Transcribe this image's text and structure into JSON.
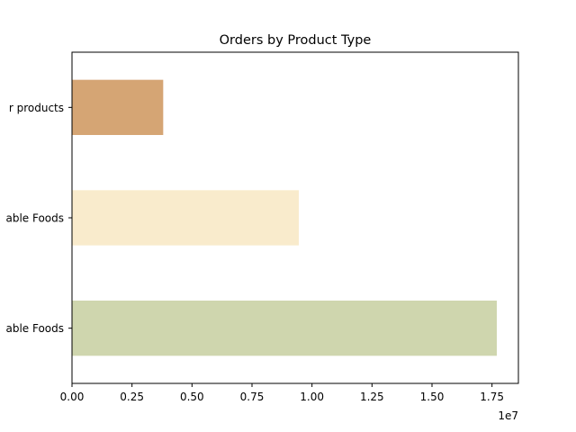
{
  "chart_data": {
    "type": "bar",
    "orientation": "horizontal",
    "title": "Orders by Product Type",
    "xlabel": "",
    "ylabel": "",
    "categories": [
      "Non-Perishable Foods",
      "Perishable Foods",
      "Other products"
    ],
    "category_labels": [
      "able Foods",
      "able Foods",
      "r products"
    ],
    "values": [
      17700000,
      9450000,
      3800000
    ],
    "colors": [
      "#cfd6ae",
      "#f9ebcc",
      "#d5a574"
    ],
    "xlim": [
      0,
      18600000
    ],
    "xticks": [
      0,
      2500000,
      5000000,
      7500000,
      10000000,
      12500000,
      15000000,
      17500000
    ],
    "xtick_labels": [
      "0.00",
      "0.25",
      "0.50",
      "0.75",
      "1.00",
      "1.25",
      "1.50",
      "1.75"
    ],
    "x_scale_label": "1e7",
    "grid": false,
    "legend": "none"
  }
}
